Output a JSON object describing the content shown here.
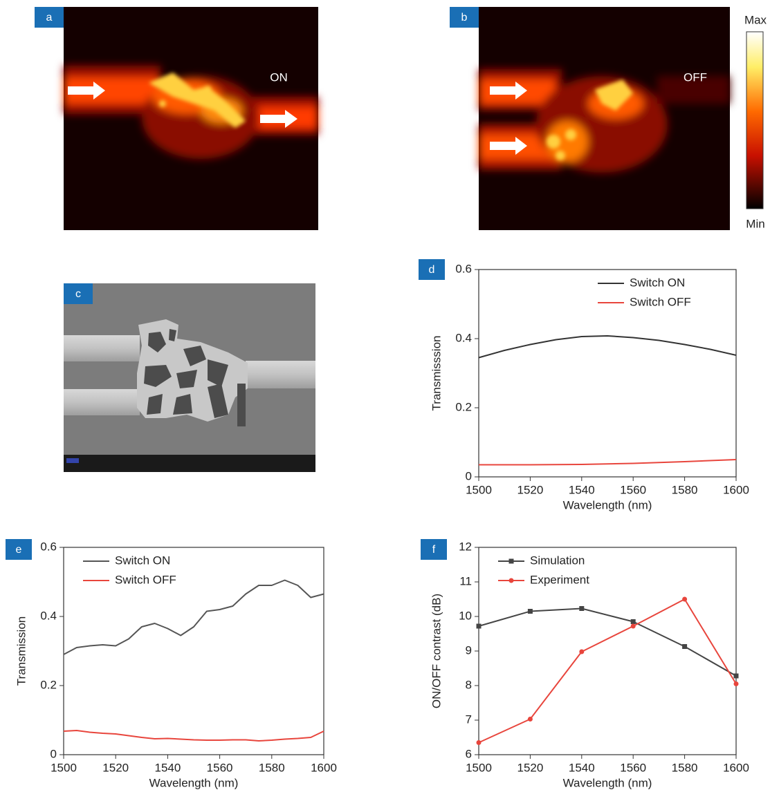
{
  "images": [
    {
      "label": "a",
      "annotation": "ON"
    },
    {
      "label": "b",
      "annotation": "OFF"
    },
    {
      "label": "c"
    }
  ],
  "colorbar": {
    "max": "Max",
    "min": "Min"
  },
  "chart_data": [
    {
      "type": "line",
      "panel_label": "d",
      "x_label": "Wavelength (nm)",
      "y_label": "Transmisssion",
      "xlim": [
        1500,
        1600
      ],
      "xticks": [
        1500,
        1520,
        1540,
        1560,
        1580,
        1600
      ],
      "ylim": [
        0,
        0.6
      ],
      "yticks": [
        0,
        0.2,
        0.4,
        0.6
      ],
      "legend": "upper right",
      "series": [
        {
          "name": "Switch ON",
          "color": "#333333",
          "x": [
            1500,
            1510,
            1520,
            1530,
            1540,
            1550,
            1560,
            1570,
            1580,
            1590,
            1600
          ],
          "values": [
            0.345,
            0.366,
            0.383,
            0.397,
            0.406,
            0.408,
            0.403,
            0.395,
            0.383,
            0.369,
            0.352
          ]
        },
        {
          "name": "Switch OFF",
          "color": "#e8453c",
          "x": [
            1500,
            1520,
            1540,
            1560,
            1580,
            1600
          ],
          "values": [
            0.035,
            0.035,
            0.036,
            0.039,
            0.044,
            0.05
          ]
        }
      ]
    },
    {
      "type": "line",
      "panel_label": "e",
      "x_label": "Wavelength (nm)",
      "y_label": "Transmission",
      "xlim": [
        1500,
        1600
      ],
      "xticks": [
        1500,
        1520,
        1540,
        1560,
        1580,
        1600
      ],
      "ylim": [
        0,
        0.6
      ],
      "yticks": [
        0,
        0.2,
        0.4,
        0.6
      ],
      "legend": "upper left",
      "series": [
        {
          "name": "Switch ON",
          "color": "#555555",
          "x": [
            1500,
            1505,
            1510,
            1515,
            1520,
            1525,
            1530,
            1535,
            1540,
            1545,
            1550,
            1555,
            1560,
            1565,
            1570,
            1575,
            1580,
            1585,
            1590,
            1595,
            1600
          ],
          "values": [
            0.29,
            0.31,
            0.315,
            0.318,
            0.315,
            0.335,
            0.37,
            0.38,
            0.365,
            0.345,
            0.37,
            0.415,
            0.42,
            0.43,
            0.465,
            0.49,
            0.49,
            0.505,
            0.49,
            0.455,
            0.465
          ]
        },
        {
          "name": "Switch OFF",
          "color": "#e8453c",
          "x": [
            1500,
            1505,
            1510,
            1515,
            1520,
            1525,
            1530,
            1535,
            1540,
            1545,
            1550,
            1555,
            1560,
            1565,
            1570,
            1575,
            1580,
            1585,
            1590,
            1595,
            1600
          ],
          "values": [
            0.068,
            0.07,
            0.065,
            0.062,
            0.06,
            0.055,
            0.05,
            0.046,
            0.047,
            0.045,
            0.043,
            0.042,
            0.042,
            0.043,
            0.043,
            0.04,
            0.042,
            0.045,
            0.047,
            0.05,
            0.068
          ]
        }
      ]
    },
    {
      "type": "line",
      "panel_label": "f",
      "x_label": "Wavelength (nm)",
      "y_label": "ON/OFF contrast (dB)",
      "xlim": [
        1500,
        1600
      ],
      "xticks": [
        1500,
        1520,
        1540,
        1560,
        1580,
        1600
      ],
      "ylim": [
        6,
        12
      ],
      "yticks": [
        6,
        7,
        8,
        9,
        10,
        11,
        12
      ],
      "legend": "upper left",
      "series": [
        {
          "name": "Simulation",
          "color": "#444444",
          "marker": "square",
          "x": [
            1500,
            1520,
            1540,
            1560,
            1580,
            1600
          ],
          "values": [
            9.72,
            10.15,
            10.23,
            9.85,
            9.13,
            8.28
          ]
        },
        {
          "name": "Experiment",
          "color": "#e8453c",
          "marker": "circle",
          "x": [
            1500,
            1520,
            1540,
            1560,
            1580,
            1600
          ],
          "values": [
            6.35,
            7.03,
            8.98,
            9.72,
            10.5,
            8.05
          ]
        }
      ]
    }
  ]
}
